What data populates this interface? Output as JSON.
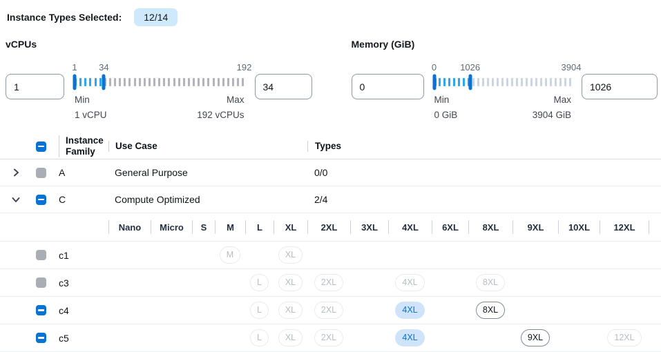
{
  "colors": {
    "primary": "#0972d3",
    "selected_count_badge_bg": "#cde9fb",
    "badge_selected_bg": "#cfe4fa",
    "badge_selected_text": "#0972d3",
    "badge_available_border": "#7d8998",
    "badge_disabled_border": "#e9ebed",
    "badge_disabled_text": "#b7bdc5",
    "slider_tick_active": "#2ea7f2",
    "slider_handle": "#0972d3",
    "checkbox_disabled": "#a9adb4"
  },
  "top": {
    "label": "Instance Types Selected:",
    "count": "12/14"
  },
  "filters": [
    {
      "title": "vCPUs",
      "lower_input": "1",
      "upper_input": "34",
      "slider": {
        "min": 1,
        "max": 192,
        "lower": 1,
        "upper": 34,
        "lower_label": "1",
        "upper_label": "34",
        "max_label": "192",
        "ticks": 35,
        "inactive_color": "#b3b3bb"
      },
      "min_title": "Min",
      "min_caption": "1 vCPU",
      "max_title": "Max",
      "max_caption": "192 vCPUs"
    },
    {
      "title": "Memory (GiB)",
      "lower_input": "0",
      "upper_input": "1026",
      "slider": {
        "min": 0,
        "max": 3904,
        "lower": 0,
        "upper": 1026,
        "lower_label": "0",
        "upper_label": "1026",
        "max_label": "3904",
        "ticks": 29,
        "inactive_color": "#ccd5e2"
      },
      "min_title": "Min",
      "min_caption": "0 GiB",
      "max_title": "Max",
      "max_caption": "3904 GiB"
    }
  ],
  "table": {
    "select_all_state": "indeterminate",
    "headers": {
      "family": "Instance Family",
      "use_case": "Use Case",
      "types": "Types"
    },
    "family_rows": [
      {
        "expand": "collapsed",
        "checkbox": "disabled",
        "family": "A",
        "use_case": "General Purpose",
        "types": "0/0"
      },
      {
        "expand": "expanded",
        "checkbox": "indeterminate",
        "family": "C",
        "use_case": "Compute Optimized",
        "types": "2/4"
      }
    ],
    "size_columns": [
      "Nano",
      "Micro",
      "S",
      "M",
      "L",
      "XL",
      "2XL",
      "3XL",
      "4XL",
      "6XL",
      "8XL",
      "9XL",
      "10XL",
      "12XL"
    ],
    "size_rows": [
      {
        "checkbox": "disabled",
        "family": "c1",
        "badges": {
          "M": "disabled",
          "XL": "disabled"
        }
      },
      {
        "checkbox": "disabled",
        "family": "c3",
        "badges": {
          "L": "disabled",
          "XL": "disabled",
          "2XL": "disabled",
          "4XL": "disabled",
          "8XL": "disabled"
        }
      },
      {
        "checkbox": "indeterminate",
        "family": "c4",
        "badges": {
          "L": "disabled",
          "XL": "disabled",
          "2XL": "disabled",
          "4XL": "selected",
          "8XL": "available"
        }
      },
      {
        "checkbox": "indeterminate",
        "family": "c5",
        "badges": {
          "L": "disabled",
          "XL": "disabled",
          "2XL": "disabled",
          "4XL": "selected",
          "9XL": "available",
          "12XL": "disabled"
        }
      }
    ]
  }
}
